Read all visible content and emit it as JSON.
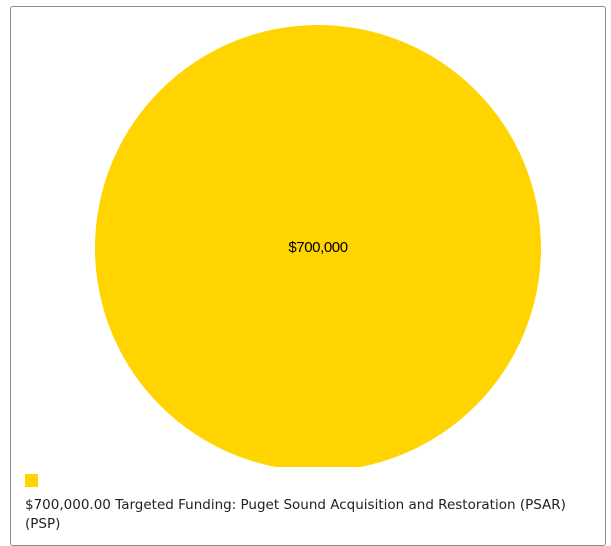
{
  "chart_data": {
    "type": "pie",
    "categories": [
      "Targeted Funding: Puget Sound Acquisition and Restoration (PSAR) (PSP)"
    ],
    "values": [
      700000
    ],
    "slice_labels": [
      "$700,000"
    ],
    "colors": [
      "#FFD400"
    ],
    "legend": {
      "placement": "bottom-left",
      "entries": [
        "$700,000.00 Targeted Funding: Puget Sound Acquisition and Restoration (PSAR) (PSP)"
      ]
    }
  }
}
